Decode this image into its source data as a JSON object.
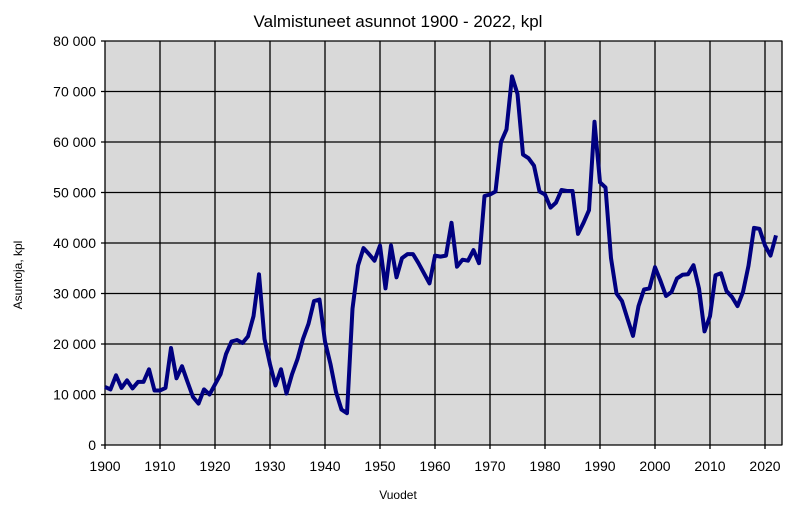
{
  "chart_data": {
    "type": "line",
    "title": "Valmistuneet  asunnot 1900 - 2022, kpl",
    "xlabel": "Vuodet",
    "ylabel": "Asuntoja, kpl",
    "xlim": [
      1900,
      2023
    ],
    "ylim": [
      0,
      80000
    ],
    "grid": true,
    "line_color": "#000080",
    "plot_background": "#d9d9d9",
    "x_ticks": [
      1900,
      1910,
      1920,
      1930,
      1940,
      1950,
      1960,
      1970,
      1980,
      1990,
      2000,
      2010,
      2020
    ],
    "x_tick_labels": [
      "1900",
      "1910",
      "1920",
      "1930",
      "1940",
      "1950",
      "1960",
      "1970",
      "1980",
      "1990",
      "2000",
      "2010",
      "2020"
    ],
    "y_ticks": [
      0,
      10000,
      20000,
      30000,
      40000,
      50000,
      60000,
      70000,
      80000
    ],
    "y_tick_labels": [
      "0",
      "10 000",
      "20 000",
      "30 000",
      "40 000",
      "50 000",
      "60 000",
      "70 000",
      "80 000"
    ],
    "x_start": 1900,
    "values": [
      11500,
      11000,
      13800,
      11300,
      12800,
      11200,
      12500,
      12500,
      15000,
      10800,
      10800,
      11300,
      19200,
      13200,
      15600,
      12500,
      9500,
      8200,
      11000,
      10000,
      12000,
      14000,
      18000,
      20500,
      20800,
      20200,
      21500,
      25500,
      33800,
      21000,
      16000,
      11800,
      15000,
      10200,
      14000,
      17000,
      21000,
      24000,
      28500,
      28800,
      20500,
      16000,
      10500,
      7000,
      6300,
      27000,
      35500,
      39000,
      37800,
      36500,
      39500,
      31000,
      39500,
      33200,
      37000,
      37800,
      37800,
      36000,
      34000,
      32000,
      37500,
      37300,
      37500,
      44000,
      35300,
      36700,
      36500,
      38600,
      36000,
      49300,
      49600,
      50200,
      60000,
      62500,
      73000,
      69500,
      57500,
      56800,
      55300,
      50200,
      49600,
      47000,
      48000,
      50500,
      50300,
      50300,
      41800,
      44000,
      46500,
      64000,
      52000,
      51000,
      37000,
      30000,
      28500,
      25000,
      21600,
      27500,
      30800,
      31000,
      35200,
      32500,
      29500,
      30300,
      33000,
      33700,
      33800,
      35600,
      31000,
      22500,
      25500,
      33600,
      34000,
      30500,
      29300,
      27500,
      30300,
      35500,
      43000,
      42800,
      39500,
      37500,
      41500
    ]
  }
}
